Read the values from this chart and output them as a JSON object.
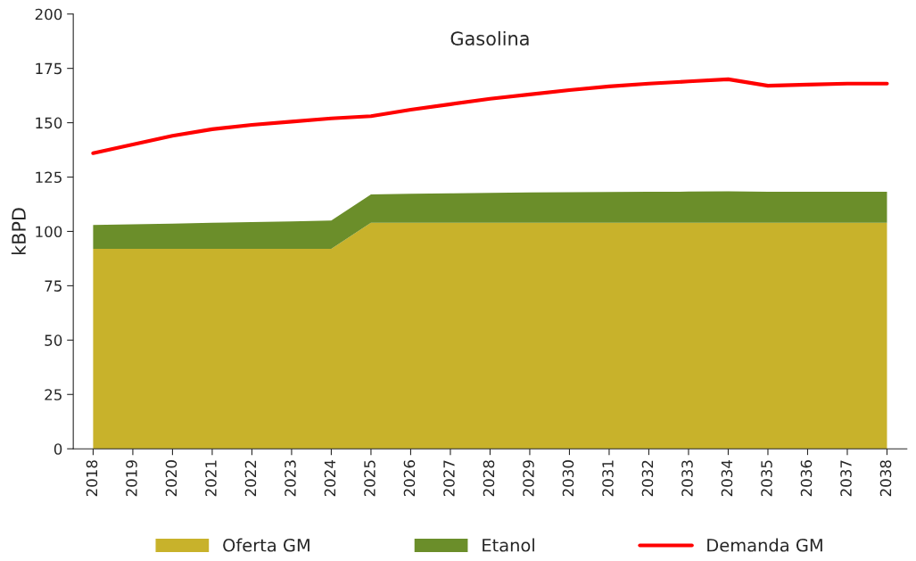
{
  "chart_data": {
    "type": "area",
    "title": "Gasolina",
    "ylabel": "kBPD",
    "stacked": true,
    "categories": [
      "2018",
      "2019",
      "2020",
      "2021",
      "2022",
      "2023",
      "2024",
      "2025",
      "2026",
      "2027",
      "2028",
      "2029",
      "2030",
      "2031",
      "2032",
      "2033",
      "2034",
      "2035",
      "2036",
      "2037",
      "2038"
    ],
    "series": [
      {
        "name": "Oferta GM",
        "color": "#c8b22b",
        "values": [
          92,
          92,
          92,
          92,
          92,
          92,
          92,
          104,
          104,
          104,
          104,
          104,
          104,
          104,
          104,
          104,
          104,
          104,
          104,
          104,
          104
        ]
      },
      {
        "name": "Etanol",
        "color": "#6b8e2a",
        "values": [
          11,
          11.3,
          11.6,
          12,
          12.3,
          12.6,
          13,
          13,
          13.3,
          13.5,
          13.7,
          13.9,
          14,
          14.1,
          14.2,
          14.3,
          14.4,
          14.2,
          14.2,
          14.2,
          14.2
        ]
      },
      {
        "name": "Demanda GM",
        "type": "line",
        "color": "#ff0000",
        "values": [
          136,
          140,
          144,
          147,
          149,
          150.5,
          152,
          153,
          156,
          158.5,
          161,
          163,
          165,
          166.7,
          168,
          169,
          170,
          167,
          167.5,
          168,
          168
        ]
      }
    ],
    "ylim": [
      0,
      200
    ],
    "yticks": [
      0,
      25,
      50,
      75,
      100,
      125,
      150,
      175,
      200
    ],
    "grid": false,
    "legend": "bottom"
  }
}
